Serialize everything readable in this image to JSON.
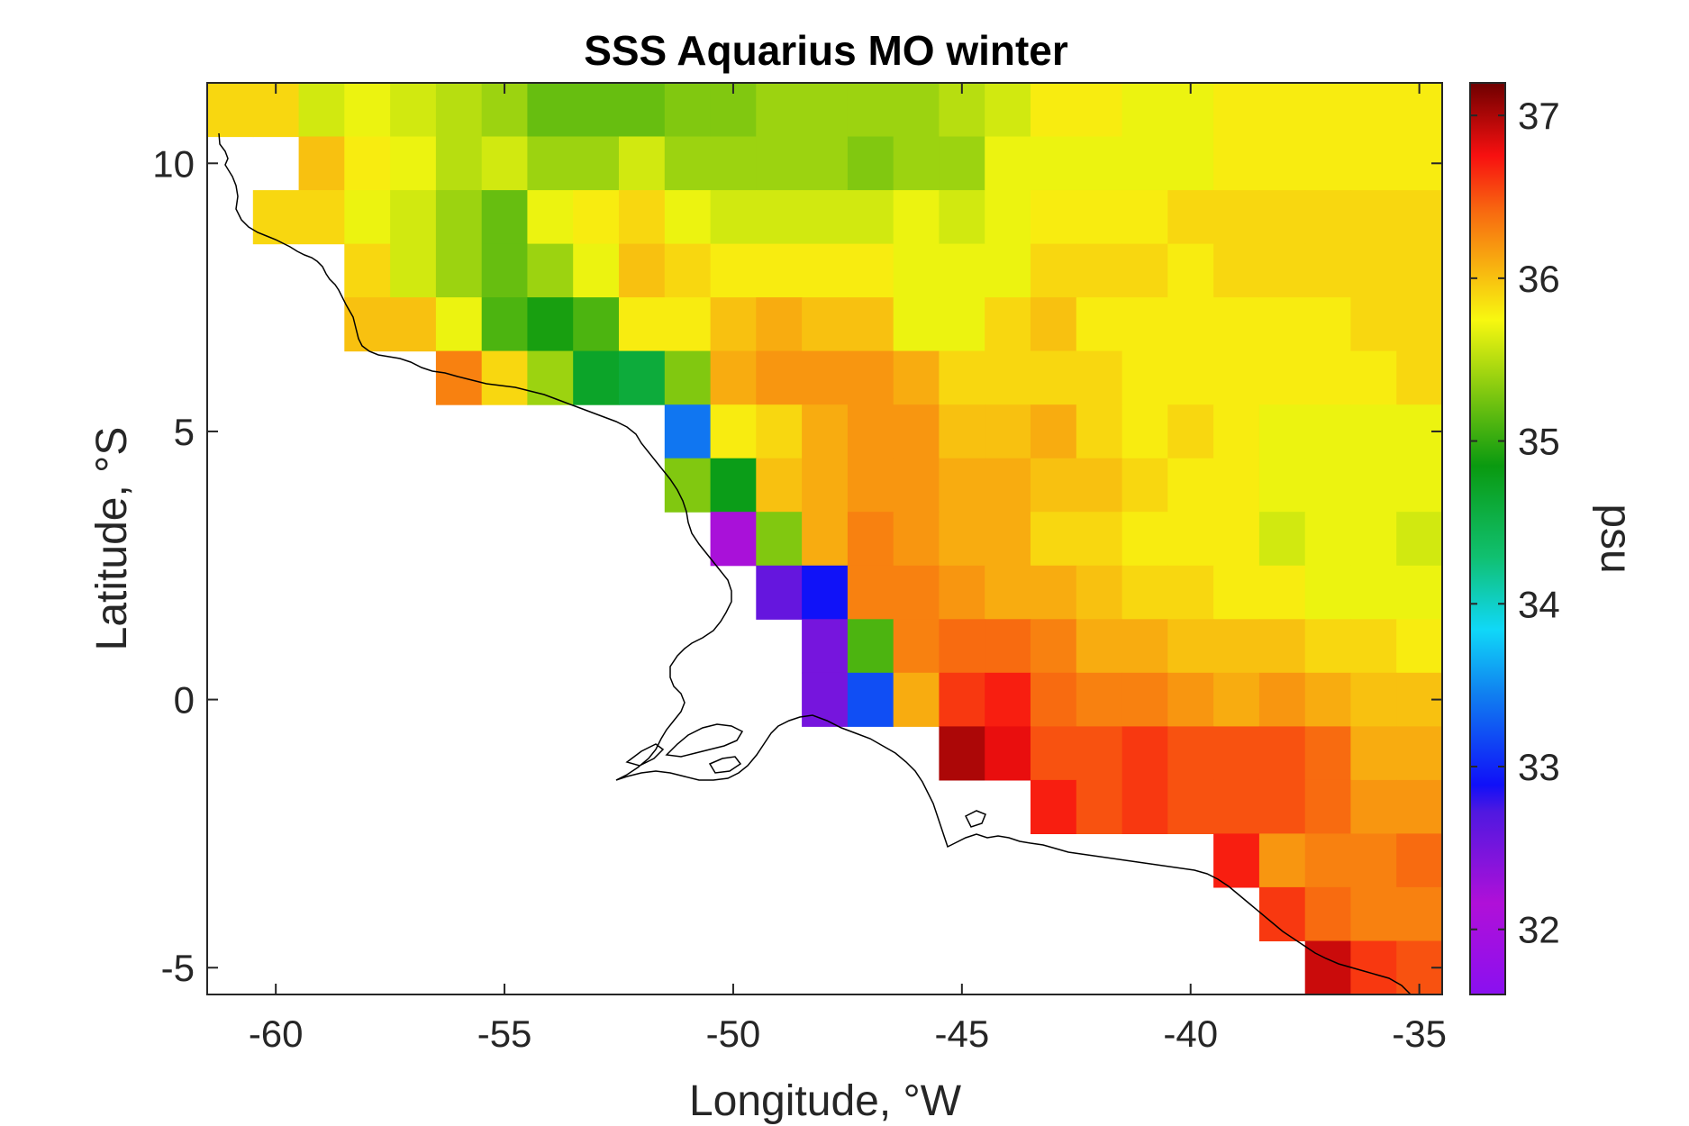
{
  "chart_data": {
    "type": "heatmap",
    "title": "SSS Aquarius MO winter",
    "xlabel": "Longitude, °W",
    "ylabel": "Latitude, °S",
    "colorbar_label": "psu",
    "xlim": [
      -61.5,
      -34.5
    ],
    "ylim": [
      -5.5,
      11.5
    ],
    "xticks": [
      -60,
      -55,
      -50,
      -45,
      -40,
      -35
    ],
    "yticks": [
      -5,
      0,
      5,
      10
    ],
    "clim": [
      31.6,
      37.2
    ],
    "cticks": [
      32,
      33,
      34,
      35,
      36,
      37
    ],
    "colormap": "psu-rainbow",
    "cell_size_deg": 1,
    "row_top_lats": [
      11.5,
      10.5,
      9.5,
      8.5,
      7.5,
      6.5,
      5.5,
      4.5,
      3.5,
      2.5,
      1.5,
      0.5,
      -0.5,
      -1.5,
      -2.5,
      -3.5,
      -4.5
    ],
    "col_left_lons": [
      -61.5,
      -60.5,
      -59.5,
      -58.5,
      -57.5,
      -56.5,
      -55.5,
      -54.5,
      -53.5,
      -52.5,
      -51.5,
      -50.5,
      -49.5,
      -48.5,
      -47.5,
      -46.5,
      -45.5,
      -44.5,
      -43.5,
      -42.5,
      -41.5,
      -40.5,
      -39.5,
      -38.5,
      -37.5,
      -36.5,
      -35.5
    ],
    "sss": [
      [
        35.9,
        35.9,
        35.6,
        35.7,
        35.6,
        35.5,
        35.4,
        35.2,
        35.2,
        35.2,
        35.3,
        35.3,
        35.4,
        35.4,
        35.4,
        35.4,
        35.5,
        35.6,
        35.8,
        35.8,
        35.7,
        35.7,
        35.8,
        35.8,
        35.8,
        35.8,
        35.8
      ],
      [
        null,
        null,
        36.0,
        35.8,
        35.7,
        35.5,
        35.6,
        35.4,
        35.4,
        35.6,
        35.4,
        35.4,
        35.4,
        35.4,
        35.3,
        35.4,
        35.4,
        35.7,
        35.7,
        35.7,
        35.7,
        35.7,
        35.8,
        35.8,
        35.8,
        35.8,
        35.8
      ],
      [
        null,
        35.9,
        35.9,
        35.7,
        35.6,
        35.4,
        35.2,
        35.7,
        35.8,
        35.9,
        35.7,
        35.6,
        35.6,
        35.6,
        35.6,
        35.7,
        35.6,
        35.7,
        35.8,
        35.8,
        35.8,
        35.9,
        35.9,
        35.9,
        35.9,
        35.9,
        35.9
      ],
      [
        null,
        null,
        null,
        35.9,
        35.6,
        35.4,
        35.2,
        35.4,
        35.7,
        36.0,
        35.9,
        35.8,
        35.8,
        35.8,
        35.8,
        35.7,
        35.7,
        35.7,
        35.9,
        35.9,
        35.9,
        35.8,
        35.9,
        35.9,
        35.9,
        35.9,
        35.9
      ],
      [
        null,
        null,
        null,
        36.0,
        36.0,
        35.7,
        35.1,
        34.9,
        35.1,
        35.8,
        35.8,
        36.0,
        36.1,
        36.0,
        36.0,
        35.7,
        35.7,
        35.9,
        36.0,
        35.8,
        35.8,
        35.8,
        35.8,
        35.8,
        35.8,
        35.9,
        35.9
      ],
      [
        null,
        null,
        null,
        null,
        null,
        36.3,
        35.9,
        35.4,
        34.7,
        34.6,
        35.3,
        36.1,
        36.2,
        36.2,
        36.2,
        36.1,
        35.9,
        35.9,
        35.9,
        35.9,
        35.8,
        35.8,
        35.8,
        35.8,
        35.8,
        35.8,
        35.9
      ],
      [
        null,
        null,
        null,
        null,
        null,
        null,
        null,
        null,
        null,
        null,
        33.4,
        35.8,
        35.9,
        36.1,
        36.2,
        36.2,
        36.0,
        36.0,
        36.1,
        35.9,
        35.8,
        35.9,
        35.8,
        35.7,
        35.7,
        35.7,
        35.7
      ],
      [
        null,
        null,
        null,
        null,
        null,
        null,
        null,
        null,
        null,
        null,
        35.3,
        34.8,
        36.0,
        36.1,
        36.2,
        36.2,
        36.1,
        36.1,
        36.0,
        36.0,
        35.9,
        35.8,
        35.8,
        35.7,
        35.7,
        35.7,
        35.7
      ],
      [
        null,
        null,
        null,
        null,
        null,
        null,
        null,
        null,
        null,
        null,
        null,
        32.2,
        35.3,
        36.1,
        36.3,
        36.2,
        36.1,
        36.1,
        35.9,
        35.9,
        35.8,
        35.8,
        35.8,
        35.6,
        35.7,
        35.7,
        35.6
      ],
      [
        null,
        null,
        null,
        null,
        null,
        null,
        null,
        null,
        null,
        null,
        null,
        null,
        32.6,
        32.9,
        36.3,
        36.3,
        36.2,
        36.1,
        36.1,
        36.0,
        35.9,
        35.9,
        35.8,
        35.8,
        35.7,
        35.7,
        35.7
      ],
      [
        null,
        null,
        null,
        null,
        null,
        null,
        null,
        null,
        null,
        null,
        null,
        null,
        null,
        32.5,
        35.1,
        36.3,
        36.4,
        36.4,
        36.3,
        36.1,
        36.1,
        36.0,
        36.0,
        36.0,
        35.9,
        35.9,
        35.8
      ],
      [
        null,
        null,
        null,
        null,
        null,
        null,
        null,
        null,
        null,
        null,
        null,
        null,
        null,
        32.5,
        33.2,
        36.1,
        36.6,
        36.7,
        36.4,
        36.3,
        36.3,
        36.2,
        36.1,
        36.2,
        36.1,
        36.0,
        36.0
      ],
      [
        null,
        null,
        null,
        null,
        null,
        null,
        null,
        null,
        null,
        null,
        null,
        null,
        null,
        null,
        null,
        null,
        37.0,
        36.8,
        36.5,
        36.5,
        36.6,
        36.5,
        36.5,
        36.5,
        36.4,
        36.1,
        36.1
      ],
      [
        null,
        null,
        null,
        null,
        null,
        null,
        null,
        null,
        null,
        null,
        null,
        null,
        null,
        null,
        null,
        null,
        null,
        null,
        36.7,
        36.5,
        36.6,
        36.5,
        36.5,
        36.5,
        36.4,
        36.2,
        36.2
      ],
      [
        null,
        null,
        null,
        null,
        null,
        null,
        null,
        null,
        null,
        null,
        null,
        null,
        null,
        null,
        null,
        null,
        null,
        null,
        null,
        null,
        null,
        null,
        36.7,
        36.2,
        36.3,
        36.3,
        36.4
      ],
      [
        null,
        null,
        null,
        null,
        null,
        null,
        null,
        null,
        null,
        null,
        null,
        null,
        null,
        null,
        null,
        null,
        null,
        null,
        null,
        null,
        null,
        null,
        null,
        36.6,
        36.4,
        36.3,
        36.3
      ],
      [
        null,
        null,
        null,
        null,
        null,
        null,
        null,
        null,
        null,
        null,
        null,
        null,
        null,
        null,
        null,
        null,
        null,
        null,
        null,
        null,
        null,
        null,
        null,
        null,
        36.9,
        36.6,
        36.5
      ]
    ],
    "grid": false,
    "colorbar": "right"
  },
  "colors": {
    "axes": "#262626",
    "coastline": "#000000",
    "background": "#ffffff"
  }
}
